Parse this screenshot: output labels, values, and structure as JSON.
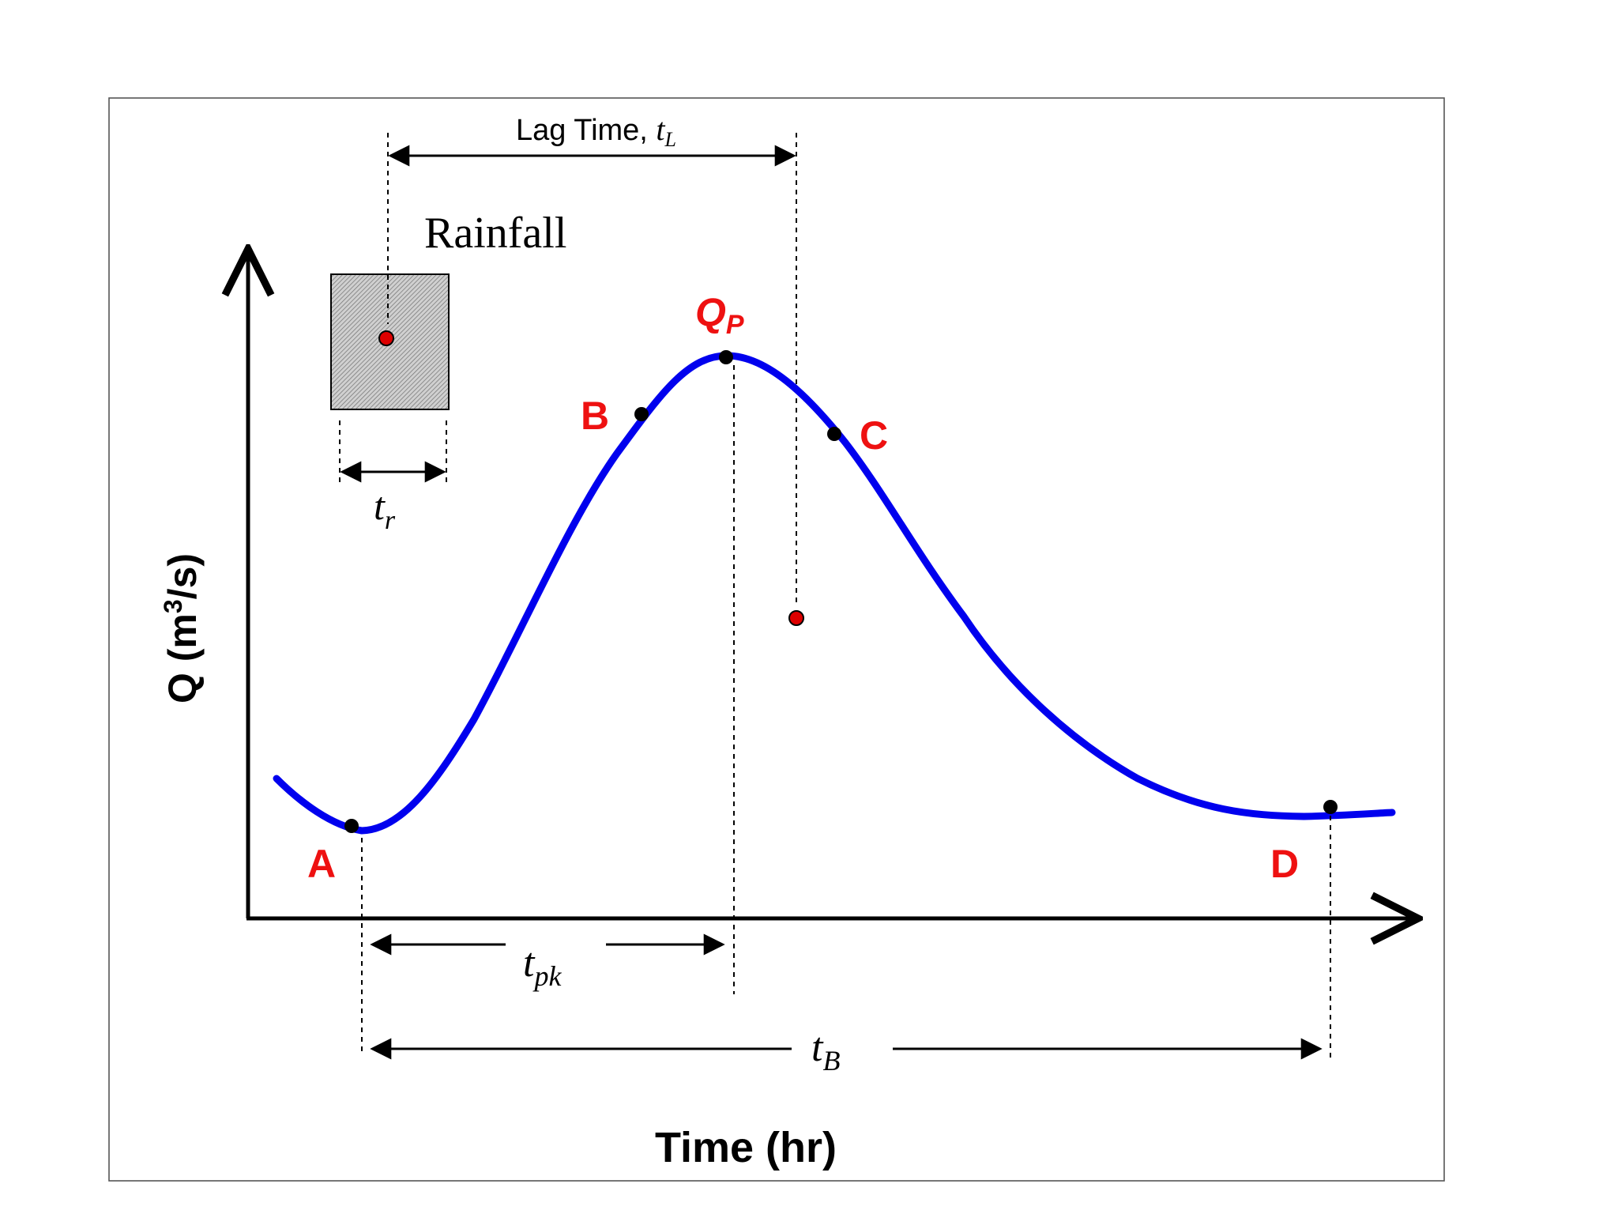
{
  "axes": {
    "y_label_main": "Q (m",
    "y_label_sup": "3",
    "y_label_end": "/s)",
    "x_label": "Time (hr)"
  },
  "rainfall": {
    "label": "Rainfall",
    "duration_symbol": "t",
    "duration_sub": "r"
  },
  "lag_time": {
    "label": "Lag Time, ",
    "symbol": "t",
    "sub": "L"
  },
  "peak": {
    "symbol": "Q",
    "sub": "P"
  },
  "points": [
    "A",
    "B",
    "C",
    "D"
  ],
  "time_to_peak": {
    "symbol": "t",
    "sub": "pk"
  },
  "base_time": {
    "symbol": "t",
    "sub": "B"
  },
  "colors": {
    "hydrograph": "#0000ee",
    "labels": "#ee1111",
    "centroid": "#dd0000",
    "rain_fill": "#c8c8c8"
  }
}
